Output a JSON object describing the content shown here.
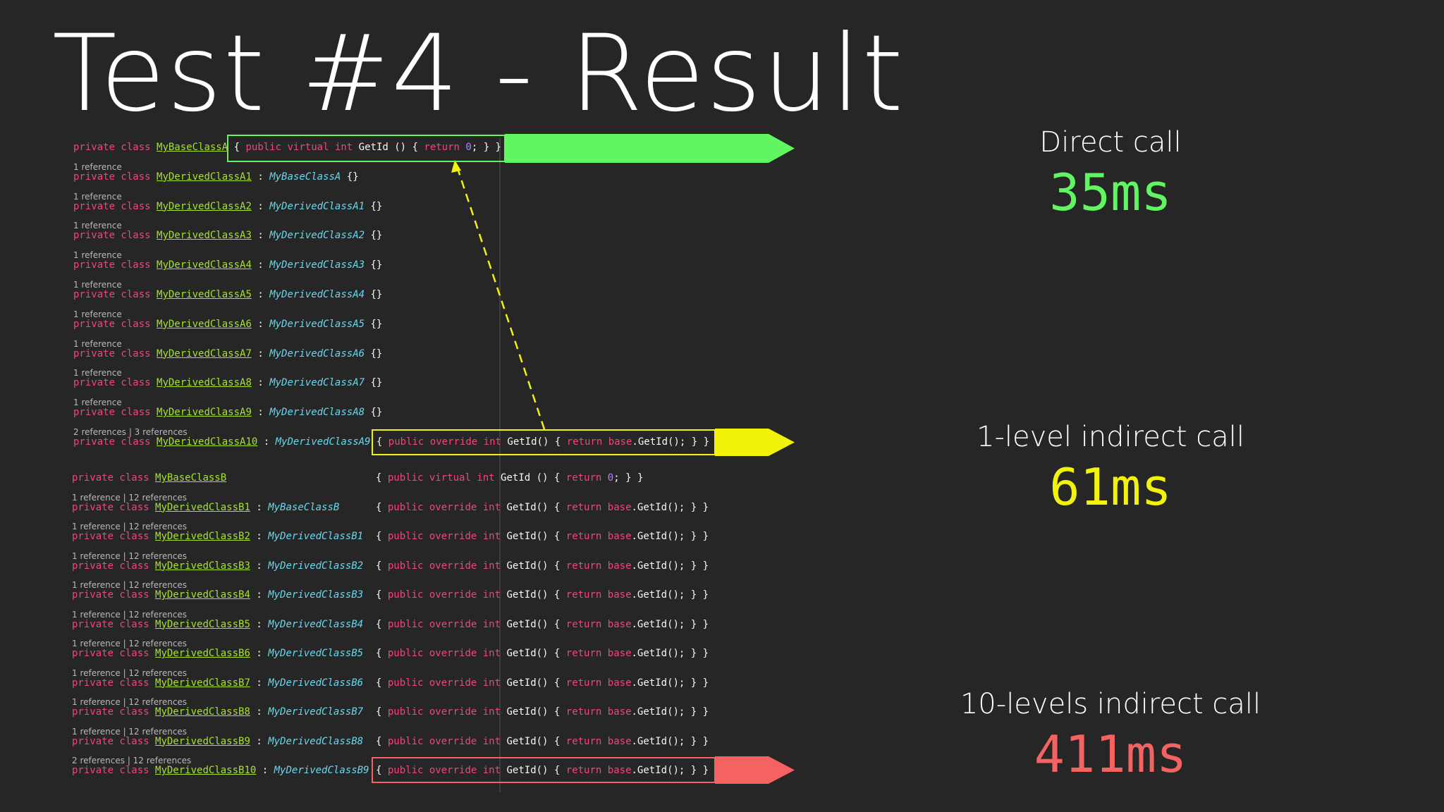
{
  "title": "Test #4 - Result",
  "keyword": "private class",
  "separator": ":",
  "group_a": [
    {
      "name": "MyBaseClassA",
      "body": "{ public virtual int GetId () { return 0; } }"
    },
    {
      "refs": "1 reference",
      "name": "MyDerivedClassA1",
      "base": "MyBaseClassA",
      "body": "{}"
    },
    {
      "refs": "1 reference",
      "name": "MyDerivedClassA2",
      "base": "MyDerivedClassA1",
      "body": "{}"
    },
    {
      "refs": "1 reference",
      "name": "MyDerivedClassA3",
      "base": "MyDerivedClassA2",
      "body": "{}"
    },
    {
      "refs": "1 reference",
      "name": "MyDerivedClassA4",
      "base": "MyDerivedClassA3",
      "body": "{}"
    },
    {
      "refs": "1 reference",
      "name": "MyDerivedClassA5",
      "base": "MyDerivedClassA4",
      "body": "{}"
    },
    {
      "refs": "1 reference",
      "name": "MyDerivedClassA6",
      "base": "MyDerivedClassA5",
      "body": "{}"
    },
    {
      "refs": "1 reference",
      "name": "MyDerivedClassA7",
      "base": "MyDerivedClassA6",
      "body": "{}"
    },
    {
      "refs": "1 reference",
      "name": "MyDerivedClassA8",
      "base": "MyDerivedClassA7",
      "body": "{}"
    },
    {
      "refs": "1 reference",
      "name": "MyDerivedClassA9",
      "base": "MyDerivedClassA8",
      "body": "{}"
    },
    {
      "refs": "2 references | 3 references",
      "name": "MyDerivedClassA10",
      "base": "MyDerivedClassA9",
      "body": "{ public override int GetId() { return base.GetId(); } }"
    }
  ],
  "group_b": [
    {
      "name": "MyBaseClassB",
      "body": "{ public virtual int GetId () { return 0; } }"
    },
    {
      "refs": "1 reference | 12 references",
      "name": "MyDerivedClassB1",
      "base": "MyBaseClassB",
      "body": "{ public override int GetId() { return base.GetId(); } }"
    },
    {
      "refs": "1 reference | 12 references",
      "name": "MyDerivedClassB2",
      "base": "MyDerivedClassB1",
      "body": "{ public override int GetId() { return base.GetId(); } }"
    },
    {
      "refs": "1 reference | 12 references",
      "name": "MyDerivedClassB3",
      "base": "MyDerivedClassB2",
      "body": "{ public override int GetId() { return base.GetId(); } }"
    },
    {
      "refs": "1 reference | 12 references",
      "name": "MyDerivedClassB4",
      "base": "MyDerivedClassB3",
      "body": "{ public override int GetId() { return base.GetId(); } }"
    },
    {
      "refs": "1 reference | 12 references",
      "name": "MyDerivedClassB5",
      "base": "MyDerivedClassB4",
      "body": "{ public override int GetId() { return base.GetId(); } }"
    },
    {
      "refs": "1 reference | 12 references",
      "name": "MyDerivedClassB6",
      "base": "MyDerivedClassB5",
      "body": "{ public override int GetId() { return base.GetId(); } }"
    },
    {
      "refs": "1 reference | 12 references",
      "name": "MyDerivedClassB7",
      "base": "MyDerivedClassB6",
      "body": "{ public override int GetId() { return base.GetId(); } }"
    },
    {
      "refs": "1 reference | 12 references",
      "name": "MyDerivedClassB8",
      "base": "MyDerivedClassB7",
      "body": "{ public override int GetId() { return base.GetId(); } }"
    },
    {
      "refs": "1 reference | 12 references",
      "name": "MyDerivedClassB9",
      "base": "MyDerivedClassB8",
      "body": "{ public override int GetId() { return base.GetId(); } }"
    },
    {
      "refs": "2 references | 12 references",
      "name": "MyDerivedClassB10",
      "base": "MyDerivedClassB9",
      "body": "{ public override int GetId() { return base.GetId(); } }"
    }
  ],
  "results": [
    {
      "label": "Direct call",
      "value": "35ms",
      "color": "#62f562"
    },
    {
      "label": "1-level indirect call",
      "value": "61ms",
      "color": "#f2f20a"
    },
    {
      "label": "10-levels indirect call",
      "value": "411ms",
      "color": "#f56262"
    }
  ]
}
